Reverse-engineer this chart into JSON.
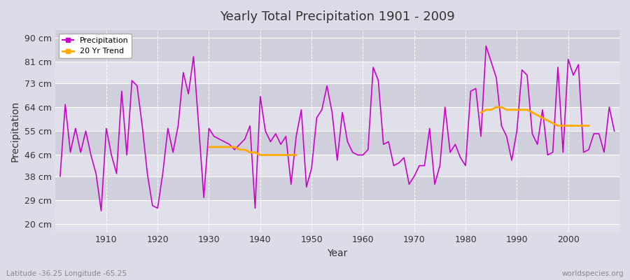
{
  "title": "Yearly Total Precipitation 1901 - 2009",
  "xlabel": "Year",
  "ylabel": "Precipitation",
  "lat_lon_label": "Latitude -36.25 Longitude -65.25",
  "source_label": "worldspecies.org",
  "background_color": "#dcdce8",
  "plot_bg_color": "#dcdce8",
  "line_color": "#cc00cc",
  "trend_color": "#ffaa00",
  "yticks": [
    20,
    29,
    38,
    46,
    55,
    64,
    73,
    81,
    90
  ],
  "ylim": [
    17,
    93
  ],
  "xlim": [
    1900,
    2010
  ],
  "years": [
    1901,
    1902,
    1903,
    1904,
    1905,
    1906,
    1907,
    1908,
    1909,
    1910,
    1911,
    1912,
    1913,
    1914,
    1915,
    1916,
    1917,
    1918,
    1919,
    1920,
    1921,
    1922,
    1923,
    1924,
    1925,
    1926,
    1927,
    1928,
    1929,
    1930,
    1931,
    1932,
    1933,
    1934,
    1935,
    1936,
    1937,
    1938,
    1939,
    1940,
    1941,
    1942,
    1943,
    1944,
    1945,
    1946,
    1947,
    1948,
    1949,
    1950,
    1951,
    1952,
    1953,
    1954,
    1955,
    1956,
    1957,
    1958,
    1959,
    1960,
    1961,
    1962,
    1963,
    1964,
    1965,
    1966,
    1967,
    1968,
    1969,
    1970,
    1971,
    1972,
    1973,
    1974,
    1975,
    1976,
    1977,
    1978,
    1979,
    1980,
    1981,
    1982,
    1983,
    1984,
    1985,
    1986,
    1987,
    1988,
    1989,
    1990,
    1991,
    1992,
    1993,
    1994,
    1995,
    1996,
    1997,
    1998,
    1999,
    2000,
    2001,
    2002,
    2003,
    2004,
    2005,
    2006,
    2007,
    2008,
    2009
  ],
  "precip": [
    38,
    65,
    47,
    56,
    47,
    55,
    46,
    39,
    25,
    56,
    46,
    39,
    70,
    46,
    74,
    72,
    57,
    39,
    27,
    26,
    39,
    56,
    47,
    57,
    77,
    69,
    83,
    57,
    30,
    56,
    53,
    52,
    51,
    50,
    48,
    50,
    52,
    57,
    26,
    68,
    55,
    51,
    54,
    50,
    53,
    35,
    53,
    63,
    34,
    41,
    60,
    63,
    72,
    62,
    44,
    62,
    51,
    47,
    46,
    46,
    48,
    79,
    74,
    50,
    51,
    42,
    43,
    45,
    35,
    38,
    42,
    42,
    56,
    35,
    42,
    64,
    47,
    50,
    45,
    42,
    70,
    71,
    53,
    87,
    81,
    75,
    57,
    53,
    44,
    55,
    78,
    76,
    54,
    50,
    63,
    46,
    47,
    79,
    47,
    82,
    76,
    80,
    47,
    48,
    54,
    54,
    47,
    64,
    55
  ],
  "trend_years": [
    1930,
    1931,
    1932,
    1933,
    1934,
    1935,
    1936,
    1937,
    1938,
    1939,
    1940,
    1941,
    1942,
    1943,
    1944,
    1945,
    1946,
    1947,
    1983,
    1984,
    1985,
    1986,
    1987,
    1988,
    1989,
    1990,
    1991,
    1992,
    1993,
    1994,
    1995,
    1996,
    1997,
    1998,
    1999,
    2000,
    2001,
    2002,
    2003,
    2004
  ],
  "trend_values": [
    49,
    49,
    49,
    49,
    49,
    49,
    48,
    48,
    47,
    47,
    46,
    46,
    46,
    46,
    46,
    46,
    46,
    46,
    62,
    63,
    63,
    64,
    64,
    63,
    63,
    63,
    63,
    63,
    62,
    61,
    60,
    59,
    58,
    57,
    57,
    57,
    57,
    57,
    57,
    57
  ],
  "band_colors": [
    "#e0e0ea",
    "#d0d0dc"
  ],
  "xticks": [
    1910,
    1920,
    1930,
    1940,
    1950,
    1960,
    1970,
    1980,
    1990,
    2000
  ]
}
